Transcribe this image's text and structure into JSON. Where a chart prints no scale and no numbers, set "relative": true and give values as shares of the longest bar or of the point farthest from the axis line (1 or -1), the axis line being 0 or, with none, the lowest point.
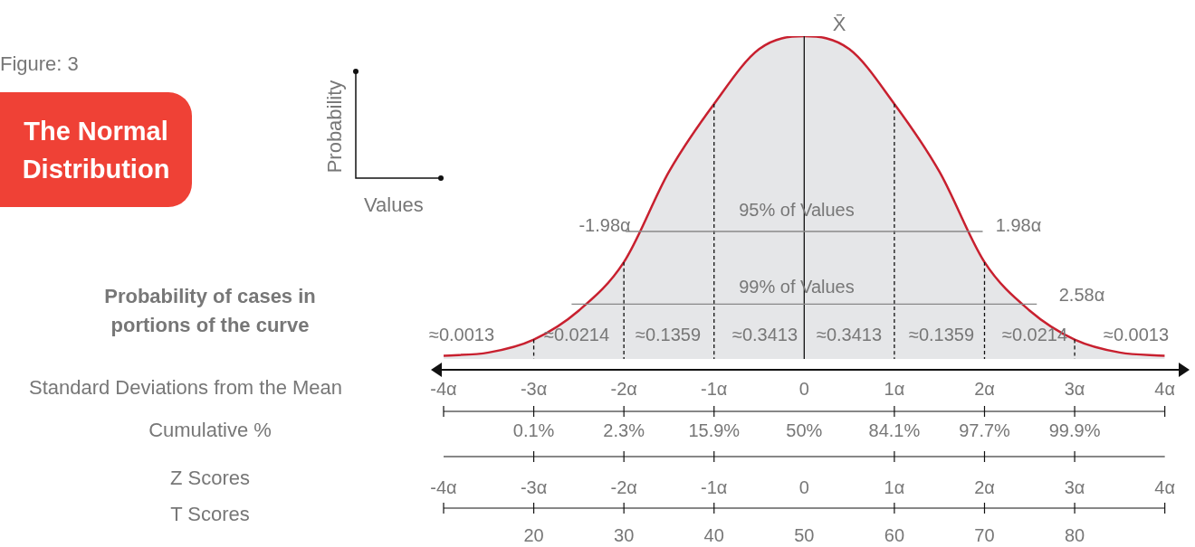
{
  "chart_data": {
    "type": "area",
    "title": "The Normal Distribution",
    "subtitle": "Figure: 3",
    "xlabel": "Values",
    "ylabel": "Probability",
    "relative": true,
    "x": [
      -4,
      -3.5,
      -3,
      -2.5,
      -2,
      -1.5,
      -1,
      -0.5,
      0,
      0.5,
      1,
      1.5,
      2,
      2.5,
      3,
      3.5,
      4
    ],
    "series": [
      {
        "color": "#c8202f",
        "values": [
          0.01,
          0.02,
          0.06,
          0.15,
          0.3,
          0.58,
          0.79,
          0.96,
          1,
          0.96,
          0.79,
          0.58,
          0.3,
          0.15,
          0.06,
          0.02,
          0.01
        ]
      },
      {
        "type": "line",
        "color": "#888888",
        "x": [
          -1.98,
          1.98
        ],
        "values": [
          0.395,
          0.395
        ]
      },
      {
        "type": "line",
        "color": "#888888",
        "x": [
          -2.58,
          2.58
        ],
        "values": [
          0.17,
          0.17
        ]
      },
      {
        "type": "line",
        "color": "#111111",
        "line_style": "dashed",
        "x": [
          -3,
          -3
        ],
        "values": [
          0.06,
          0
        ]
      },
      {
        "type": "line",
        "color": "#111111",
        "line_style": "dashed",
        "x": [
          -2,
          -2
        ],
        "values": [
          0.3,
          0
        ]
      },
      {
        "type": "line",
        "color": "#111111",
        "line_style": "dashed",
        "x": [
          -1,
          -1
        ],
        "values": [
          0.79,
          0
        ]
      },
      {
        "type": "line",
        "color": "#111111",
        "line_style": "solid",
        "x": [
          0,
          0
        ],
        "values": [
          0,
          1
        ]
      },
      {
        "type": "line",
        "color": "#111111",
        "line_style": "dashed",
        "x": [
          1,
          1
        ],
        "values": [
          0.79,
          0
        ]
      },
      {
        "type": "line",
        "color": "#111111",
        "line_style": "dashed",
        "x": [
          2,
          2
        ],
        "values": [
          0.3,
          0
        ]
      },
      {
        "type": "line",
        "color": "#111111",
        "line_style": "dashed",
        "x": [
          3,
          3
        ],
        "values": [
          0.06,
          0
        ]
      }
    ],
    "xlim": [
      -4,
      4
    ],
    "xticks": [
      {
        "value": -4,
        "label": "-4α"
      },
      {
        "value": -3,
        "label": "-3α"
      },
      {
        "value": -2,
        "label": "-2α"
      },
      {
        "value": -1,
        "label": "-1α"
      },
      0,
      {
        "value": 1,
        "label": "1α"
      },
      {
        "value": 2,
        "label": "2α"
      },
      {
        "value": 3,
        "label": "3α"
      },
      {
        "value": 4,
        "label": "4α"
      }
    ],
    "annotations": [
      "Probability of cases in portions of the curve",
      "Standard Deviations from the Mean",
      "≈0.0013",
      "≈0.0214",
      "≈0.1359",
      "≈0.3413",
      "≈0.3413",
      "≈0.1359",
      "≈0.0214",
      "≈0.0013",
      "95% of Values",
      "99% of Values",
      "-1.98α",
      "1.98α",
      "2.58α",
      "X̄",
      "Cumulative %",
      "0.1%",
      "2.3%",
      "15.9%",
      "50%",
      "84.1%",
      "97.7%",
      "99.9%",
      "Z Scores",
      "-4α",
      "-3α",
      "-2α",
      "-1α",
      "0",
      "1α",
      "2α",
      "3α",
      "4α",
      "T Scores",
      "20",
      "30",
      "40",
      "50",
      "60",
      "70",
      "80"
    ],
    "legend": false,
    "grid": false
  }
}
